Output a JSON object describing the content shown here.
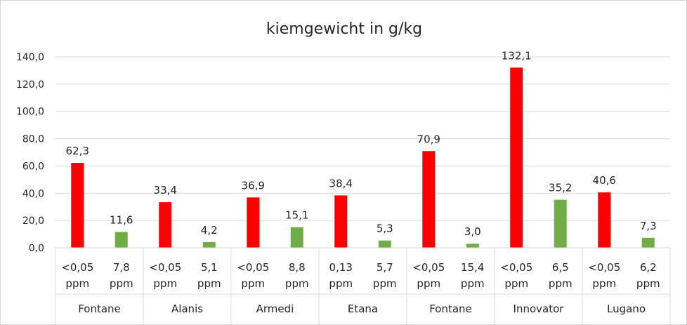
{
  "chart_data": {
    "type": "bar",
    "title": "kiemgewicht in g/kg",
    "xlabel": "",
    "ylabel": "",
    "ylim": [
      0,
      140
    ],
    "yticks": [
      "0,0",
      "20,0",
      "40,0",
      "60,0",
      "80,0",
      "100,0",
      "120,0",
      "140,0"
    ],
    "grid": true,
    "legend": "none",
    "colors": {
      "red": "#ff0000",
      "green": "#70ad47",
      "grid": "#d9d9d9",
      "text": "#262626"
    },
    "groups": [
      {
        "name": "Fontane",
        "bars": [
          {
            "cat_top": "<0,05",
            "cat_bottom": "ppm",
            "value": 62.3,
            "label": "62,3",
            "color": "red"
          },
          {
            "cat_top": "7,8",
            "cat_bottom": "ppm",
            "value": 11.6,
            "label": "11,6",
            "color": "green"
          }
        ]
      },
      {
        "name": "Alanis",
        "bars": [
          {
            "cat_top": "<0,05",
            "cat_bottom": "ppm",
            "value": 33.4,
            "label": "33,4",
            "color": "red"
          },
          {
            "cat_top": "5,1",
            "cat_bottom": "ppm",
            "value": 4.2,
            "label": "4,2",
            "color": "green"
          }
        ]
      },
      {
        "name": "Armedi",
        "bars": [
          {
            "cat_top": "<0,05",
            "cat_bottom": "ppm",
            "value": 36.9,
            "label": "36,9",
            "color": "red"
          },
          {
            "cat_top": "8,8",
            "cat_bottom": "ppm",
            "value": 15.1,
            "label": "15,1",
            "color": "green"
          }
        ]
      },
      {
        "name": "Etana",
        "bars": [
          {
            "cat_top": "0,13",
            "cat_bottom": "ppm",
            "value": 38.4,
            "label": "38,4",
            "color": "red"
          },
          {
            "cat_top": "5,7",
            "cat_bottom": "ppm",
            "value": 5.3,
            "label": "5,3",
            "color": "green"
          }
        ]
      },
      {
        "name": "Fontane",
        "bars": [
          {
            "cat_top": "<0,05",
            "cat_bottom": "ppm",
            "value": 70.9,
            "label": "70,9",
            "color": "red"
          },
          {
            "cat_top": "15,4",
            "cat_bottom": "ppm",
            "value": 3.0,
            "label": "3,0",
            "color": "green"
          }
        ]
      },
      {
        "name": "Innovator",
        "bars": [
          {
            "cat_top": "<0,05",
            "cat_bottom": "ppm",
            "value": 132.1,
            "label": "132,1",
            "color": "red"
          },
          {
            "cat_top": "6,5",
            "cat_bottom": "ppm",
            "value": 35.2,
            "label": "35,2",
            "color": "green"
          }
        ]
      },
      {
        "name": "Lugano",
        "bars": [
          {
            "cat_top": "<0,05",
            "cat_bottom": "ppm",
            "value": 40.6,
            "label": "40,6",
            "color": "red"
          },
          {
            "cat_top": "6,2",
            "cat_bottom": "ppm",
            "value": 7.3,
            "label": "7,3",
            "color": "green"
          }
        ]
      }
    ]
  }
}
